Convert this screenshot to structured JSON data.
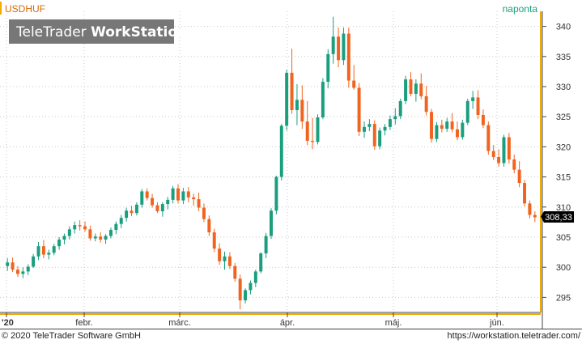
{
  "header": {
    "symbol": "USDHUF",
    "interval": "naponta",
    "watermark_prefix": "TeleTrader ",
    "watermark_bold": "WorkStation"
  },
  "footer": {
    "copyright": "© 2020 TeleTrader Software GmbH",
    "url": "https://workstation.teletrader.com/"
  },
  "colors": {
    "up": "#1a9e7e",
    "down": "#f06420",
    "accent": "#f2a900",
    "symbol_text": "#d46a00",
    "interval_text": "#1a9e7e",
    "last_price_bg": "#000000"
  },
  "chart_data": {
    "type": "candlestick",
    "x_tick_labels": [
      "'20",
      "febr.",
      "márc.",
      "ápr.",
      "máj.",
      "jún."
    ],
    "y_tick_labels": [
      "295",
      "300",
      "305",
      "310",
      "315",
      "320",
      "325",
      "330",
      "335",
      "340"
    ],
    "ylim": [
      292.5,
      342.5
    ],
    "last_price": "308,33",
    "grid": true,
    "candles": [
      [
        300.2,
        301.5,
        299.4,
        300.8
      ],
      [
        300.8,
        301.6,
        299.2,
        299.6
      ],
      [
        299.6,
        300.2,
        298.4,
        298.9
      ],
      [
        298.9,
        300.0,
        298.2,
        299.3
      ],
      [
        299.3,
        300.5,
        298.7,
        300.1
      ],
      [
        300.1,
        302.2,
        299.9,
        301.8
      ],
      [
        301.8,
        304.2,
        301.2,
        303.5
      ],
      [
        303.5,
        304.5,
        301.5,
        302.1
      ],
      [
        302.1,
        302.9,
        301.3,
        302.4
      ],
      [
        302.4,
        303.9,
        302.0,
        303.5
      ],
      [
        303.5,
        305.0,
        302.9,
        304.6
      ],
      [
        304.6,
        305.6,
        303.8,
        305.2
      ],
      [
        305.2,
        306.8,
        304.6,
        306.3
      ],
      [
        306.3,
        307.6,
        305.6,
        307.0
      ],
      [
        307.0,
        307.8,
        306.1,
        306.8
      ],
      [
        306.8,
        307.6,
        305.9,
        306.3
      ],
      [
        306.3,
        306.9,
        304.4,
        304.8
      ],
      [
        304.8,
        305.6,
        304.3,
        305.1
      ],
      [
        305.1,
        305.8,
        304.1,
        304.6
      ],
      [
        304.6,
        305.5,
        303.9,
        305.2
      ],
      [
        305.2,
        306.6,
        304.8,
        306.2
      ],
      [
        306.2,
        307.6,
        305.5,
        307.2
      ],
      [
        307.2,
        308.7,
        306.5,
        308.2
      ],
      [
        308.2,
        309.9,
        307.6,
        309.4
      ],
      [
        309.4,
        310.2,
        308.5,
        309.0
      ],
      [
        309.0,
        310.8,
        308.6,
        310.4
      ],
      [
        310.4,
        313.0,
        309.9,
        312.6
      ],
      [
        312.6,
        313.1,
        311.1,
        311.5
      ],
      [
        311.5,
        312.2,
        309.9,
        310.3
      ],
      [
        310.3,
        310.8,
        309.0,
        309.3
      ],
      [
        309.3,
        310.8,
        308.4,
        310.5
      ],
      [
        310.5,
        311.7,
        309.6,
        311.2
      ],
      [
        311.2,
        313.5,
        310.6,
        313.1
      ],
      [
        313.1,
        313.8,
        310.6,
        311.1
      ],
      [
        311.1,
        313.2,
        310.5,
        312.6
      ],
      [
        312.6,
        313.3,
        310.8,
        311.6
      ],
      [
        311.6,
        312.2,
        310.2,
        311.3
      ],
      [
        311.3,
        312.4,
        309.3,
        309.9
      ],
      [
        309.9,
        310.6,
        307.5,
        308.0
      ],
      [
        308.0,
        308.6,
        305.2,
        305.8
      ],
      [
        305.8,
        306.4,
        302.5,
        303.1
      ],
      [
        303.1,
        304.0,
        300.4,
        301.0
      ],
      [
        301.0,
        302.6,
        299.6,
        301.8
      ],
      [
        301.8,
        302.5,
        299.7,
        300.2
      ],
      [
        300.2,
        300.7,
        297.6,
        298.1
      ],
      [
        298.1,
        298.8,
        293.0,
        294.5
      ],
      [
        294.5,
        296.5,
        294.0,
        296.2
      ],
      [
        296.2,
        297.8,
        295.5,
        297.4
      ],
      [
        297.4,
        299.6,
        296.7,
        299.3
      ],
      [
        299.3,
        302.5,
        299.0,
        302.3
      ],
      [
        302.3,
        305.7,
        301.5,
        305.2
      ],
      [
        305.2,
        309.8,
        304.7,
        309.4
      ],
      [
        309.4,
        315.2,
        308.8,
        315.0
      ],
      [
        315.0,
        323.8,
        314.4,
        323.5
      ],
      [
        323.5,
        332.8,
        322.7,
        332.3
      ],
      [
        332.3,
        336.3,
        325.5,
        326.1
      ],
      [
        326.1,
        330.4,
        323.6,
        327.8
      ],
      [
        327.8,
        330.2,
        323.0,
        324.2
      ],
      [
        324.2,
        327.6,
        320.3,
        321.0
      ],
      [
        321.0,
        324.8,
        319.6,
        320.8
      ],
      [
        320.8,
        325.4,
        320.4,
        324.9
      ],
      [
        324.9,
        331.4,
        324.6,
        330.8
      ],
      [
        330.8,
        336.2,
        329.7,
        335.4
      ],
      [
        335.4,
        341.6,
        333.8,
        338.3
      ],
      [
        338.3,
        339.8,
        333.2,
        334.4
      ],
      [
        334.4,
        339.8,
        333.6,
        338.8
      ],
      [
        338.8,
        339.8,
        329.8,
        331.0
      ],
      [
        331.0,
        333.6,
        329.5,
        329.8
      ],
      [
        329.8,
        330.6,
        321.8,
        322.5
      ],
      [
        322.5,
        324.2,
        321.5,
        323.3
      ],
      [
        323.3,
        324.6,
        322.6,
        323.8
      ],
      [
        323.8,
        324.4,
        319.5,
        320.1
      ],
      [
        320.1,
        323.2,
        319.6,
        322.7
      ],
      [
        322.7,
        323.8,
        321.9,
        323.3
      ],
      [
        323.3,
        325.2,
        322.8,
        324.6
      ],
      [
        324.6,
        326.4,
        323.7,
        325.1
      ],
      [
        325.1,
        328.0,
        324.6,
        327.6
      ],
      [
        327.6,
        331.8,
        327.1,
        331.2
      ],
      [
        331.2,
        332.4,
        328.4,
        328.8
      ],
      [
        328.8,
        331.2,
        327.5,
        330.5
      ],
      [
        330.5,
        332.2,
        327.9,
        328.4
      ],
      [
        328.4,
        330.1,
        325.2,
        325.8
      ],
      [
        325.8,
        326.3,
        320.7,
        321.3
      ],
      [
        321.3,
        324.1,
        320.8,
        323.6
      ],
      [
        323.6,
        324.5,
        322.4,
        323.0
      ],
      [
        323.0,
        324.8,
        322.5,
        324.2
      ],
      [
        324.2,
        325.6,
        322.4,
        322.9
      ],
      [
        322.9,
        324.2,
        321.1,
        321.6
      ],
      [
        321.6,
        324.5,
        321.2,
        324.0
      ],
      [
        324.0,
        328.0,
        323.6,
        327.6
      ],
      [
        327.6,
        329.3,
        326.3,
        328.2
      ],
      [
        328.2,
        329.4,
        324.6,
        325.3
      ],
      [
        325.3,
        326.2,
        323.1,
        323.6
      ],
      [
        323.6,
        324.2,
        318.7,
        319.3
      ],
      [
        319.3,
        320.3,
        317.8,
        318.3
      ],
      [
        318.3,
        319.6,
        316.7,
        317.3
      ],
      [
        317.3,
        322.0,
        316.7,
        321.6
      ],
      [
        321.6,
        322.3,
        317.2,
        317.9
      ],
      [
        317.9,
        318.7,
        315.6,
        316.2
      ],
      [
        316.2,
        317.6,
        313.3,
        314.0
      ],
      [
        314.0,
        314.5,
        310.1,
        310.6
      ],
      [
        310.6,
        311.1,
        308.1,
        308.7
      ],
      [
        308.7,
        309.3,
        307.5,
        308.3
      ]
    ]
  }
}
